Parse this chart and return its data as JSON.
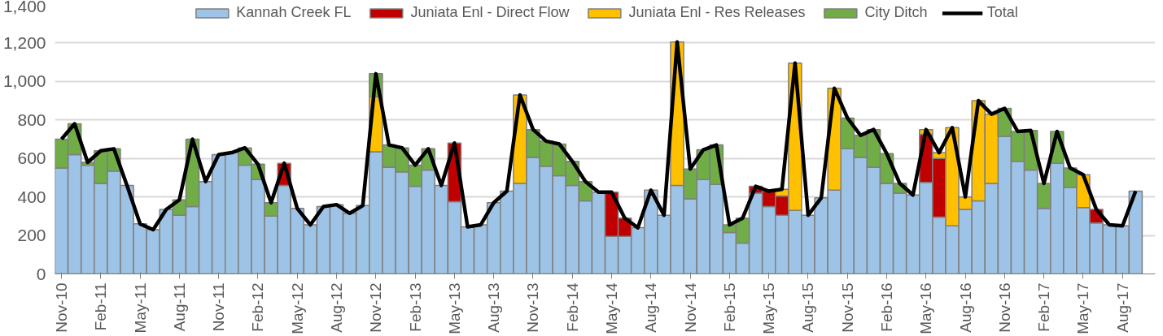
{
  "chart_data": {
    "type": "bar",
    "stacked": true,
    "legend": "top",
    "grid": "y",
    "line_style": "solid",
    "ylim": [
      0,
      1400
    ],
    "yticks": [
      {
        "value": 0,
        "label": "0"
      },
      {
        "value": 200,
        "label": "200"
      },
      {
        "value": 400,
        "label": "400"
      },
      {
        "value": 600,
        "label": "600"
      },
      {
        "value": 800,
        "label": "800"
      },
      {
        "value": 1000,
        "label": "1,000"
      },
      {
        "value": 1200,
        "label": "1,200"
      },
      {
        "value": 1400,
        "label": "1,400"
      }
    ],
    "categories": [
      "Nov-10",
      null,
      null,
      "Feb-11",
      null,
      null,
      "May-11",
      null,
      null,
      "Aug-11",
      null,
      null,
      "Nov-11",
      null,
      null,
      "Feb-12",
      null,
      null,
      "May-12",
      null,
      null,
      "Aug-12",
      null,
      null,
      "Nov-12",
      null,
      null,
      "Feb-13",
      null,
      null,
      "May-13",
      null,
      null,
      "Aug-13",
      null,
      null,
      "Nov-13",
      null,
      null,
      "Feb-14",
      null,
      null,
      "May-14",
      null,
      null,
      "Aug-14",
      null,
      null,
      "Nov-14",
      null,
      null,
      "Feb-15",
      null,
      null,
      "May-15",
      null,
      null,
      "Aug-15",
      null,
      null,
      "Nov-15",
      null,
      null,
      "Feb-16",
      null,
      null,
      "May-16",
      null,
      null,
      "Aug-16",
      null,
      null,
      "Nov-16",
      null,
      null,
      "Feb-17",
      null,
      null,
      "May-17",
      null,
      null,
      "Aug-17",
      null,
      null
    ],
    "series": [
      {
        "name": "Kannah Creek FL",
        "color": "#9dc3e6",
        "values": [
          550,
          620,
          565,
          470,
          535,
          460,
          260,
          230,
          335,
          305,
          350,
          480,
          620,
          630,
          565,
          490,
          300,
          460,
          340,
          255,
          350,
          360,
          315,
          355,
          635,
          555,
          530,
          455,
          540,
          460,
          375,
          245,
          255,
          370,
          430,
          470,
          605,
          560,
          510,
          460,
          380,
          425,
          195,
          195,
          240,
          435,
          305,
          460,
          390,
          490,
          465,
          215,
          160,
          420,
          350,
          305,
          330,
          305,
          395,
          435,
          650,
          605,
          555,
          470,
          420,
          410,
          475,
          295,
          250,
          335,
          380,
          470,
          715,
          585,
          540,
          340,
          575,
          450,
          345,
          265,
          255,
          250,
          430,
          null
        ]
      },
      {
        "name": "Juniata Enl - Direct Flow",
        "color": "#c00000",
        "values": [
          null,
          null,
          null,
          null,
          null,
          null,
          null,
          null,
          null,
          null,
          null,
          null,
          null,
          null,
          null,
          null,
          null,
          115,
          null,
          null,
          null,
          null,
          null,
          null,
          null,
          null,
          null,
          null,
          null,
          null,
          305,
          null,
          null,
          null,
          null,
          null,
          null,
          null,
          null,
          null,
          null,
          null,
          230,
          95,
          null,
          null,
          null,
          null,
          null,
          null,
          null,
          null,
          null,
          35,
          80,
          100,
          null,
          null,
          null,
          null,
          null,
          null,
          null,
          null,
          null,
          null,
          250,
          305,
          null,
          null,
          null,
          null,
          null,
          null,
          null,
          null,
          null,
          null,
          null,
          70,
          null,
          null,
          null,
          null
        ]
      },
      {
        "name": "Juniata Enl - Res Releases",
        "color": "#ffc000",
        "values": [
          null,
          null,
          null,
          null,
          null,
          null,
          null,
          null,
          null,
          null,
          null,
          null,
          null,
          null,
          null,
          null,
          null,
          null,
          null,
          null,
          null,
          null,
          null,
          null,
          285,
          null,
          null,
          null,
          null,
          null,
          null,
          null,
          null,
          null,
          null,
          460,
          null,
          null,
          null,
          null,
          null,
          null,
          null,
          null,
          null,
          null,
          null,
          745,
          null,
          null,
          null,
          null,
          null,
          null,
          null,
          35,
          765,
          null,
          null,
          530,
          null,
          null,
          null,
          null,
          null,
          null,
          25,
          30,
          510,
          65,
          520,
          360,
          null,
          null,
          null,
          null,
          null,
          null,
          170,
          null,
          null,
          null,
          null,
          null
        ]
      },
      {
        "name": "City Ditch",
        "color": "#70ad47",
        "values": [
          150,
          160,
          15,
          170,
          115,
          null,
          null,
          null,
          null,
          80,
          350,
          null,
          null,
          null,
          90,
          80,
          70,
          null,
          null,
          null,
          null,
          null,
          null,
          null,
          120,
          115,
          125,
          110,
          110,
          null,
          null,
          null,
          null,
          null,
          null,
          null,
          145,
          130,
          165,
          125,
          100,
          null,
          null,
          null,
          null,
          null,
          null,
          null,
          155,
          155,
          205,
          40,
          130,
          null,
          null,
          null,
          null,
          null,
          null,
          null,
          160,
          115,
          195,
          155,
          50,
          null,
          null,
          null,
          null,
          null,
          null,
          null,
          145,
          155,
          205,
          130,
          165,
          100,
          null,
          null,
          null,
          null,
          null,
          null
        ]
      },
      {
        "name": "Total",
        "type": "line",
        "color": "#000000",
        "values": [
          700,
          780,
          580,
          640,
          650,
          460,
          260,
          230,
          335,
          385,
          700,
          480,
          620,
          630,
          655,
          570,
          370,
          575,
          340,
          255,
          350,
          360,
          315,
          355,
          1040,
          670,
          655,
          565,
          650,
          460,
          680,
          245,
          255,
          370,
          430,
          930,
          750,
          690,
          675,
          585,
          480,
          425,
          425,
          290,
          240,
          435,
          305,
          1205,
          545,
          645,
          670,
          255,
          290,
          455,
          430,
          440,
          1095,
          305,
          395,
          965,
          810,
          720,
          750,
          625,
          470,
          410,
          750,
          630,
          760,
          400,
          900,
          830,
          860,
          740,
          745,
          470,
          740,
          550,
          515,
          335,
          255,
          250,
          430,
          null
        ]
      }
    ]
  }
}
